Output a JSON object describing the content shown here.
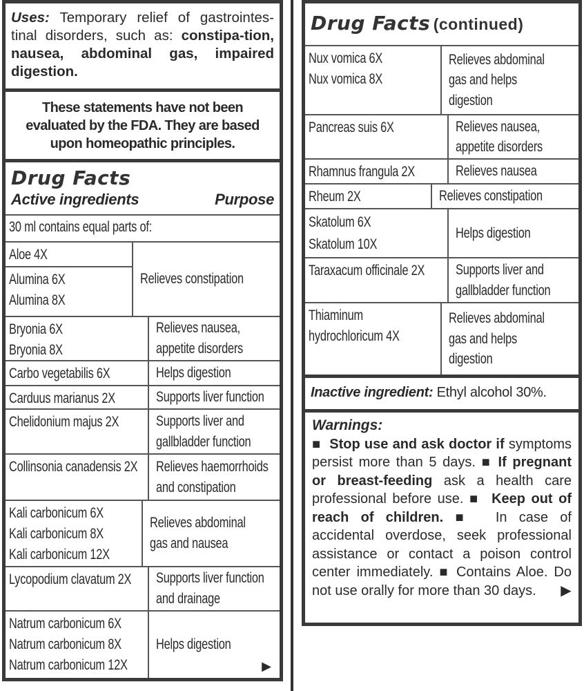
{
  "uses": {
    "label": "Uses:",
    "text": "Temporary relief of gastrointes-tinal disorders, such as:",
    "conditions": "constipa-tion, nausea, abdominal gas, impaired digestion."
  },
  "fda_statement": "These statements have not been evaluated by the FDA. They are based upon homeopathic principles.",
  "drug_facts": {
    "title": "Drug Facts",
    "active_ingredients_label": "Active ingredients",
    "purpose_label": "Purpose",
    "intro": "30 ml contains equal parts of:",
    "continued_suffix": "(continued)"
  },
  "left_rows": [
    {
      "ingredients": [
        [
          "Aloe 4X"
        ],
        [
          "Alumina 6X",
          "Alumina 8X"
        ]
      ],
      "purpose": [
        "Relieves constipation"
      ]
    },
    {
      "ingredients": [
        [
          "Bryonia 6X",
          "Bryonia 8X"
        ]
      ],
      "purpose": [
        "Relieves nausea,",
        "appetite disorders"
      ]
    },
    {
      "ingredients": [
        [
          "Carbo vegetabilis 6X"
        ]
      ],
      "purpose": [
        "Helps digestion"
      ]
    },
    {
      "ingredients": [
        [
          "Carduus marianus 2X"
        ]
      ],
      "purpose": [
        "Supports liver function"
      ]
    },
    {
      "ingredients": [
        [
          "Chelidonium majus 2X"
        ]
      ],
      "purpose": [
        "Supports liver and",
        "gallbladder function"
      ]
    },
    {
      "ingredients": [
        [
          "Collinsonia canadensis 2X"
        ]
      ],
      "purpose": [
        "Relieves haemorrhoids",
        "and constipation"
      ]
    },
    {
      "ingredients": [
        [
          "Kali carbonicum 6X",
          "Kali carbonicum 8X",
          "Kali carbonicum 12X"
        ]
      ],
      "purpose": [
        "Relieves abdominal",
        "gas and nausea"
      ]
    },
    {
      "ingredients": [
        [
          "Lycopodium clavatum 2X"
        ]
      ],
      "purpose": [
        "Supports liver function",
        "and drainage"
      ]
    },
    {
      "ingredients": [
        [
          "Natrum carbonicum 6X",
          "Natrum carbonicum 8X",
          "Natrum carbonicum 12X"
        ]
      ],
      "purpose": [
        "Helps digestion"
      ]
    }
  ],
  "right_rows": [
    {
      "ingredients": [
        [
          "Nux vomica 6X",
          "Nux vomica 8X"
        ]
      ],
      "purpose": [
        "Relieves abdominal",
        "gas and helps",
        "digestion"
      ]
    },
    {
      "ingredients": [
        [
          "Pancreas suis 6X"
        ]
      ],
      "purpose": [
        "Relieves nausea,",
        "appetite disorders"
      ]
    },
    {
      "ingredients": [
        [
          "Rhamnus frangula 2X"
        ]
      ],
      "purpose": [
        "Relieves nausea"
      ]
    },
    {
      "ingredients": [
        [
          "Rheum 2X"
        ]
      ],
      "purpose": [
        "Relieves constipation"
      ]
    },
    {
      "ingredients": [
        [
          "Skatolum 6X",
          "Skatolum 10X"
        ]
      ],
      "purpose": [
        "Helps digestion"
      ]
    },
    {
      "ingredients": [
        [
          "Taraxacum officinale 2X"
        ]
      ],
      "purpose": [
        "Supports liver and",
        "gallbladder function"
      ]
    },
    {
      "ingredients": [
        [
          "Thiaminum",
          "hydrochloricum 4X"
        ]
      ],
      "purpose": [
        "Relieves abdominal",
        "gas and helps",
        "digestion"
      ]
    }
  ],
  "inactive": {
    "label": "Inactive ingredient:",
    "text": "Ethyl alcohol 30%."
  },
  "warnings": {
    "title": "Warnings:",
    "bullet": "■",
    "w1_bold": "Stop use and ask doctor if",
    "w1_text": "symptoms persist more than 5 days.",
    "w2_bold": "If pregnant or breast-feeding",
    "w2_text": "ask a health care professional before use.",
    "w3_bold": "Keep out of reach of children.",
    "w4_text": "In case of accidental overdose, seek professional assistance or contact a poison control center immediately.",
    "w5_text": "Contains Aloe. Do not use orally for more than 30 days."
  },
  "continue_arrow": "▶"
}
